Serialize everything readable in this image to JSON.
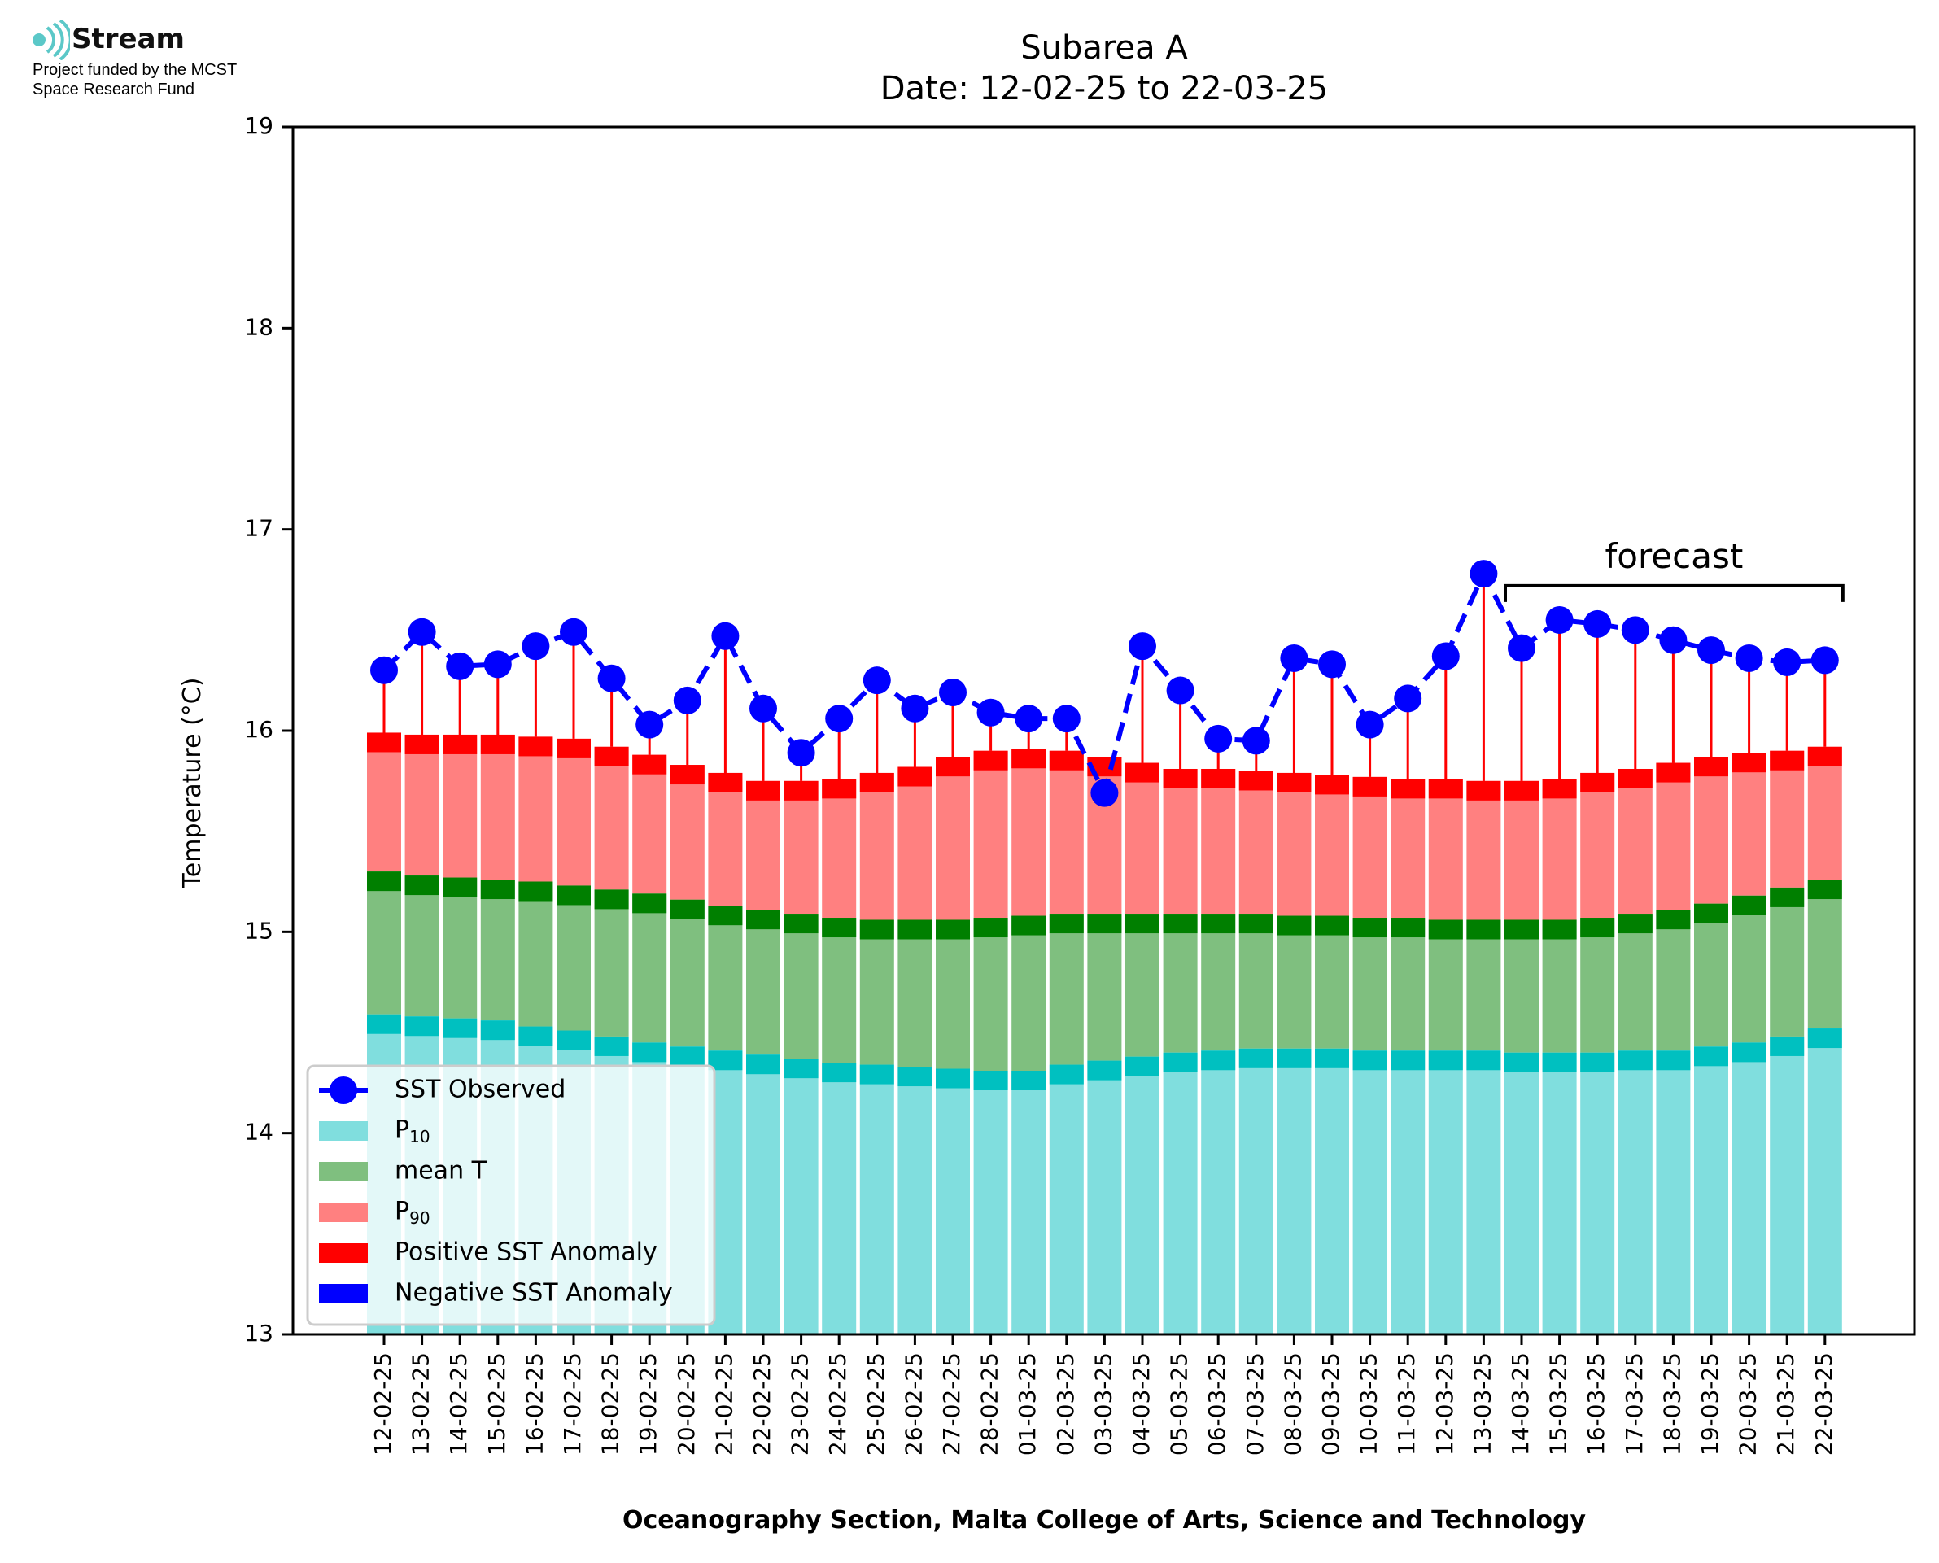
{
  "logo": {
    "brand": "Stream",
    "tagline": "Project funded by the MCST\nSpace Research Fund",
    "color": "#5bc8c8"
  },
  "chart_data": {
    "type": "bar",
    "title": "Subarea A",
    "subtitle": "Date: 12-02-25 to 22-03-25",
    "xlabel": "Oceanography Section, Malta College of Arts, Science and Technology",
    "ylabel": "Temperature (°C)",
    "ylim": [
      13,
      19
    ],
    "yticks": [
      "13",
      "14",
      "15",
      "16",
      "17",
      "18",
      "19"
    ],
    "categories": [
      "12-02-25",
      "13-02-25",
      "14-02-25",
      "15-02-25",
      "16-02-25",
      "17-02-25",
      "18-02-25",
      "19-02-25",
      "20-02-25",
      "21-02-25",
      "22-02-25",
      "23-02-25",
      "24-02-25",
      "25-02-25",
      "26-02-25",
      "27-02-25",
      "28-02-25",
      "01-03-25",
      "02-03-25",
      "03-03-25",
      "04-03-25",
      "05-03-25",
      "06-03-25",
      "07-03-25",
      "08-03-25",
      "09-03-25",
      "10-03-25",
      "11-03-25",
      "12-03-25",
      "13-03-25",
      "14-03-25",
      "15-03-25",
      "16-03-25",
      "17-03-25",
      "18-03-25",
      "19-03-25",
      "20-03-25",
      "21-03-25",
      "22-03-25"
    ],
    "series": [
      {
        "name": "P10",
        "color": "#80dede",
        "values": [
          14.59,
          14.58,
          14.57,
          14.56,
          14.53,
          14.51,
          14.48,
          14.45,
          14.43,
          14.41,
          14.39,
          14.37,
          14.35,
          14.34,
          14.33,
          14.32,
          14.31,
          14.31,
          14.34,
          14.36,
          14.38,
          14.4,
          14.41,
          14.42,
          14.42,
          14.42,
          14.41,
          14.41,
          14.41,
          14.41,
          14.4,
          14.4,
          14.4,
          14.41,
          14.41,
          14.43,
          14.45,
          14.48,
          14.52
        ]
      },
      {
        "name": "mean T",
        "color": "#7fbf7f",
        "values": [
          15.3,
          15.28,
          15.27,
          15.26,
          15.25,
          15.23,
          15.21,
          15.19,
          15.16,
          15.13,
          15.11,
          15.09,
          15.07,
          15.06,
          15.06,
          15.06,
          15.07,
          15.08,
          15.09,
          15.09,
          15.09,
          15.09,
          15.09,
          15.09,
          15.08,
          15.08,
          15.07,
          15.07,
          15.06,
          15.06,
          15.06,
          15.06,
          15.07,
          15.09,
          15.11,
          15.14,
          15.18,
          15.22,
          15.26
        ]
      },
      {
        "name": "P90",
        "color": "#ff8080",
        "values": [
          15.99,
          15.98,
          15.98,
          15.98,
          15.97,
          15.96,
          15.92,
          15.88,
          15.83,
          15.79,
          15.75,
          15.75,
          15.76,
          15.79,
          15.82,
          15.87,
          15.9,
          15.91,
          15.9,
          15.87,
          15.84,
          15.81,
          15.81,
          15.8,
          15.79,
          15.78,
          15.77,
          15.76,
          15.76,
          15.75,
          15.75,
          15.76,
          15.79,
          15.81,
          15.84,
          15.87,
          15.89,
          15.9,
          15.92
        ]
      },
      {
        "name": "SST Observed",
        "color": "#0000ff",
        "values": [
          16.3,
          16.49,
          16.32,
          16.33,
          16.42,
          16.49,
          16.26,
          16.03,
          16.15,
          16.47,
          16.11,
          15.89,
          16.06,
          16.25,
          16.11,
          16.19,
          16.09,
          16.06,
          16.06,
          15.69,
          16.42,
          16.2,
          15.96,
          15.95,
          16.36,
          16.33,
          16.03,
          16.16,
          16.37,
          16.78,
          16.41,
          16.55,
          16.53,
          16.5,
          16.45,
          16.4,
          16.36,
          16.34,
          16.35
        ]
      }
    ],
    "band_edge_colors": {
      "P10": "#00c0c0",
      "mean T": "#007f00",
      "P90": "#ff0000"
    },
    "anomaly_colors": {
      "positive": "#ff0000",
      "negative": "#0000ff"
    },
    "legend": {
      "placement": "lower-left",
      "items": [
        {
          "label": "SST Observed",
          "swatch": "line-marker",
          "color": "#0000ff"
        },
        {
          "label": "P",
          "sub": "10",
          "swatch": "patch",
          "color": "#80dede"
        },
        {
          "label": "mean T",
          "swatch": "patch",
          "color": "#7fbf7f"
        },
        {
          "label": "P",
          "sub": "90",
          "swatch": "patch",
          "color": "#ff8080"
        },
        {
          "label": "Positive SST Anomaly",
          "swatch": "patch",
          "color": "#ff0000"
        },
        {
          "label": "Negative SST Anomaly",
          "swatch": "patch",
          "color": "#0000ff"
        }
      ]
    },
    "annotation": {
      "text": "forecast",
      "start_index": 30,
      "end_index": 38,
      "y": 16.72
    }
  }
}
